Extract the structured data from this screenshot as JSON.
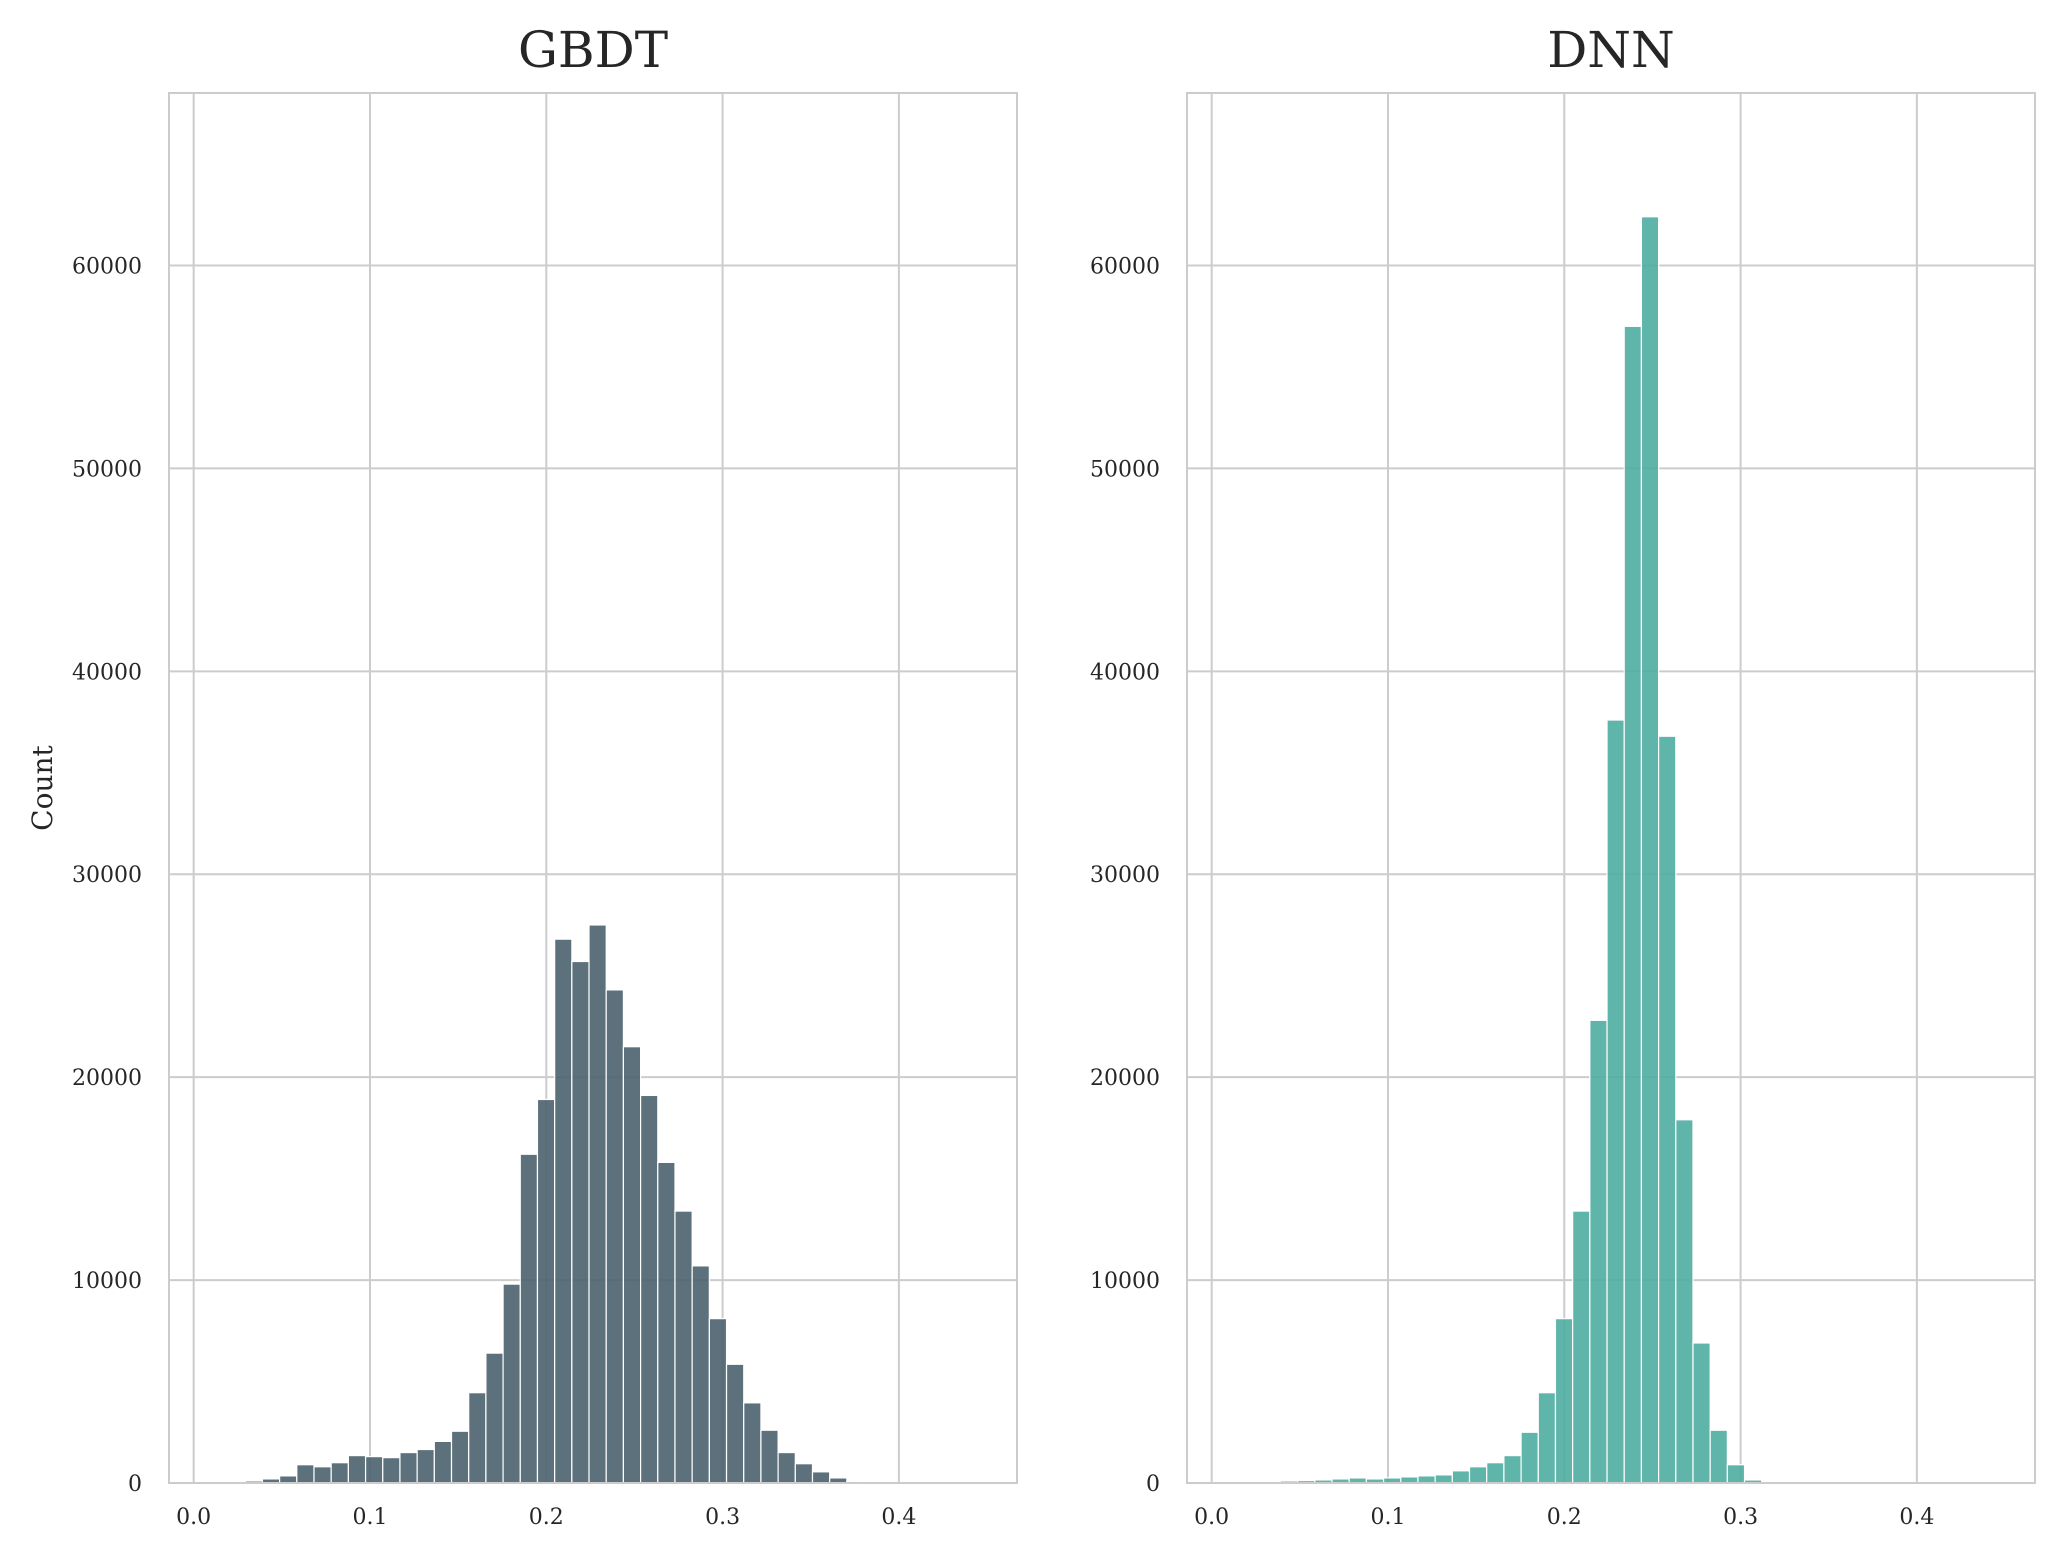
{
  "chart_data": [
    {
      "type": "bar",
      "title": "GBDT",
      "xlabel": "",
      "ylabel": "Count",
      "color": "#4a626d",
      "xlim": [
        -0.014,
        0.467
      ],
      "ylim": [
        0,
        68500
      ],
      "xticks": [
        "0.0",
        "0.1",
        "0.2",
        "0.3",
        "0.4"
      ],
      "yticks": [
        "0",
        "10000",
        "20000",
        "30000",
        "40000",
        "50000",
        "60000"
      ],
      "bin_start": 0.0,
      "bin_width": 0.00975,
      "values": [
        0,
        0,
        0,
        100,
        200,
        350,
        900,
        800,
        1000,
        1350,
        1300,
        1250,
        1500,
        1650,
        2050,
        2550,
        4450,
        6400,
        9800,
        16200,
        18900,
        26800,
        25700,
        27500,
        24300,
        21500,
        19100,
        15800,
        13400,
        10700,
        8100,
        5850,
        3950,
        2600,
        1500,
        950,
        550,
        250,
        80,
        30,
        0,
        0,
        0,
        0,
        0,
        0
      ]
    },
    {
      "type": "bar",
      "title": "DNN",
      "xlabel": "",
      "ylabel": "",
      "color": "#4fada1",
      "xlim": [
        -0.014,
        0.467
      ],
      "ylim": [
        0,
        68500
      ],
      "xticks": [
        "0.0",
        "0.1",
        "0.2",
        "0.3",
        "0.4"
      ],
      "yticks": [
        "0",
        "10000",
        "20000",
        "30000",
        "40000",
        "50000",
        "60000"
      ],
      "bin_start": 0.0,
      "bin_width": 0.00975,
      "values": [
        0,
        0,
        0,
        0,
        100,
        120,
        150,
        200,
        250,
        200,
        250,
        300,
        350,
        400,
        600,
        800,
        1000,
        1350,
        2500,
        4450,
        8100,
        13400,
        22800,
        37600,
        57000,
        62400,
        36800,
        17900,
        6900,
        2600,
        900,
        150,
        0,
        0,
        0,
        0,
        0,
        0,
        0,
        0,
        0,
        0,
        0,
        0,
        0,
        0
      ]
    }
  ]
}
